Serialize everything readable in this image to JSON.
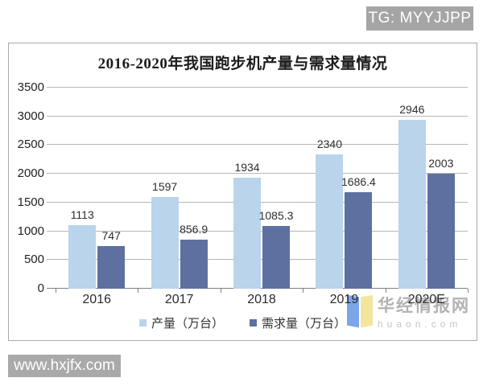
{
  "page": {
    "tg_badge": "TG: MYYJJPP",
    "left_watermark": "www.hxjfx.com",
    "right_watermark": {
      "brand": "华经情报网",
      "site": "huaon.com"
    }
  },
  "chart_data": {
    "type": "bar",
    "title": "2016-2020年我国跑步机产量与需求量情况",
    "categories": [
      "2016",
      "2017",
      "2018",
      "2019",
      "2020E"
    ],
    "series": [
      {
        "name": "产量（万台）",
        "color": "#b9d4eb",
        "values": [
          1113,
          1597,
          1934,
          2340,
          2946
        ]
      },
      {
        "name": "需求量（万台）",
        "color": "#5d70a0",
        "values": [
          747,
          856.9,
          1085.3,
          1686.4,
          2003
        ]
      }
    ],
    "ylim": [
      0,
      3500
    ],
    "yticks": [
      0,
      500,
      1000,
      1500,
      2000,
      2500,
      3000,
      3500
    ],
    "grid": true,
    "legend_position": "bottom",
    "colors": {
      "gridline": "#b6b6b6",
      "axis": "#7f7f7f",
      "badge_bg": "#a5a5a5"
    }
  }
}
